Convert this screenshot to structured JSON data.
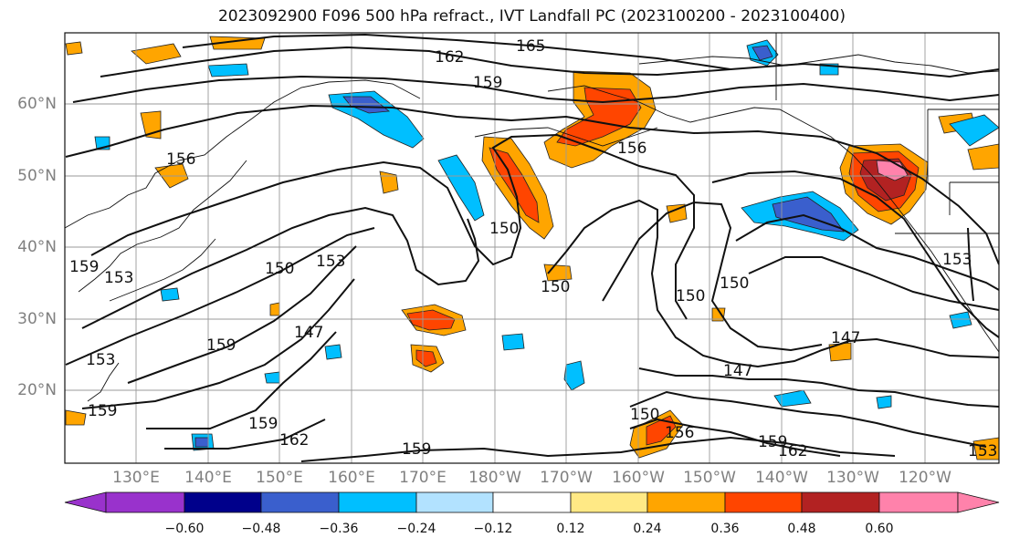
{
  "title": "2023092900 F096 500 hPa refract., IVT Landfall PC (2023100200 - 2023100400)",
  "lat_labels": [
    "60°N",
    "50°N",
    "40°N",
    "30°N",
    "20°N"
  ],
  "lon_labels": [
    "130°E",
    "140°E",
    "150°E",
    "160°E",
    "170°E",
    "180°W",
    "170°W",
    "160°W",
    "150°W",
    "140°W",
    "130°W",
    "120°W"
  ],
  "contour_labels": [
    "165",
    "162",
    "159",
    "156",
    "156",
    "153",
    "153",
    "150",
    "150",
    "150",
    "150",
    "150",
    "147",
    "147",
    "147",
    "159",
    "159",
    "159",
    "159",
    "162",
    "162",
    "156",
    "153",
    "153",
    "159",
    "150",
    "153",
    "159"
  ],
  "colorbar": {
    "ticks": [
      "−0.60",
      "−0.48",
      "−0.36",
      "−0.24",
      "−0.12",
      "0.12",
      "0.24",
      "0.36",
      "0.48",
      "0.60"
    ],
    "colors": [
      "#9932cc",
      "#00008b",
      "#3a5fcd",
      "#00bfff",
      "#b2e2ff",
      "#ffffff",
      "#ffe985",
      "#ffa500",
      "#ff4500",
      "#b22222",
      "#ff82ab"
    ]
  }
}
